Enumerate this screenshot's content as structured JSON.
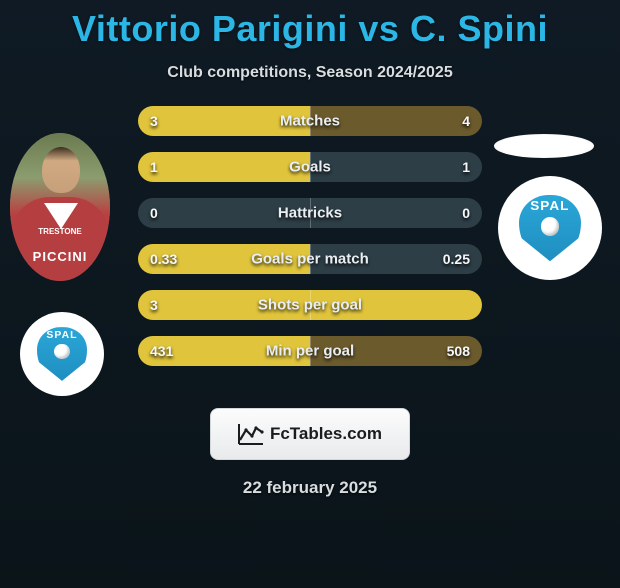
{
  "title": "Vittorio Parigini vs C. Spini",
  "subtitle": "Club competitions, Season 2024/2025",
  "date": "22 february 2025",
  "fctables_label": "FcTables.com",
  "colors": {
    "accent": "#2bb6e6",
    "background_top": "#0f1a24",
    "background_bottom": "#0a1419",
    "bar_yellow": "#e0c43b",
    "bar_dark": "#2d3e46",
    "bar_brown": "#6b5a2c",
    "label_color": "#e9eef2",
    "value_color": "#f5f7fa"
  },
  "player1": {
    "shirt_text_small": "TRESTONE",
    "shirt_text_large": "PICCINI"
  },
  "badge_text": "SPAL",
  "stats": [
    {
      "label": "Matches",
      "left_value": "3",
      "right_value": "4",
      "left_color": "#e0c43b",
      "right_color": "#6b5a2c",
      "left_width": 1.0,
      "right_width": 1.0
    },
    {
      "label": "Goals",
      "left_value": "1",
      "right_value": "1",
      "left_color": "#e0c43b",
      "right_color": "#2d3e46",
      "left_width": 1.0,
      "right_width": 1.0
    },
    {
      "label": "Hattricks",
      "left_value": "0",
      "right_value": "0",
      "left_color": "#2d3e46",
      "right_color": "#2d3e46",
      "left_width": 1.0,
      "right_width": 1.0
    },
    {
      "label": "Goals per match",
      "left_value": "0.33",
      "right_value": "0.25",
      "left_color": "#e0c43b",
      "right_color": "#2d3e46",
      "left_width": 1.0,
      "right_width": 1.0
    },
    {
      "label": "Shots per goal",
      "left_value": "3",
      "right_value": "",
      "left_color": "#e0c43b",
      "right_color": "#e0c43b",
      "left_width": 1.0,
      "right_width": 1.0
    },
    {
      "label": "Min per goal",
      "left_value": "431",
      "right_value": "508",
      "left_color": "#e0c43b",
      "right_color": "#6b5a2c",
      "left_width": 1.0,
      "right_width": 1.0
    }
  ]
}
